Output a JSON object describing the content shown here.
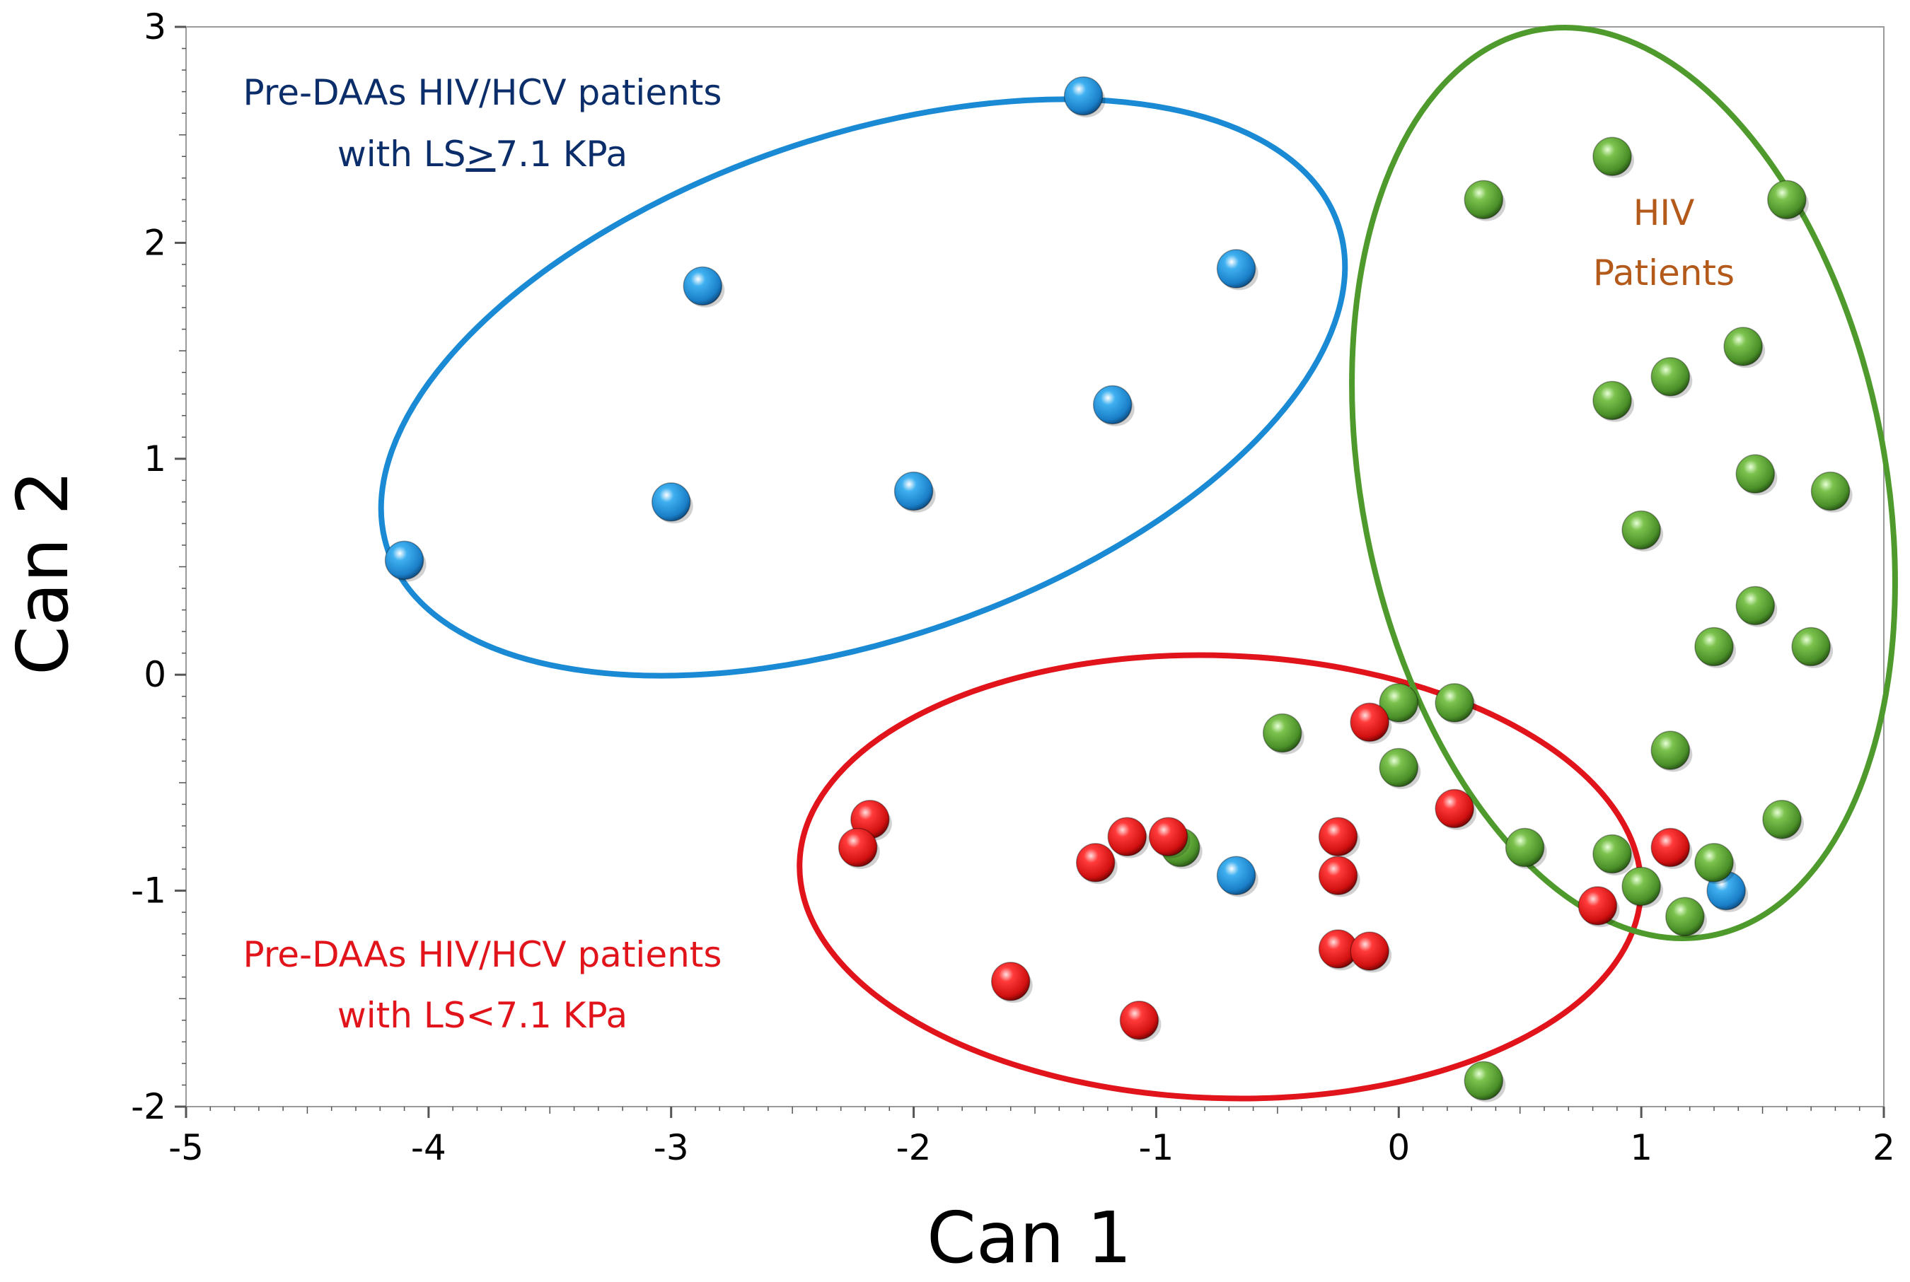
{
  "chart_data": {
    "type": "scatter",
    "title": "",
    "xlabel": "Can 1",
    "ylabel": "Can 2",
    "xlim": [
      -5,
      2
    ],
    "ylim": [
      -2,
      3
    ],
    "xticks": [
      -5,
      -4,
      -3,
      -2,
      -1,
      0,
      1,
      2
    ],
    "yticks": [
      -2,
      -1,
      0,
      1,
      2,
      3
    ],
    "grid": false,
    "colors": {
      "blue": "#1a8ad4",
      "red": "#e0141a",
      "green": "#4f9a2c",
      "blue_text": "#0b2e6b",
      "red_text": "#e0141a",
      "orange_text": "#b35a1a"
    },
    "series": [
      {
        "name": "Pre-DAAs HIV/HCV patients with LS≥7.1 KPa",
        "color": "#1a8ad4",
        "points": [
          {
            "x": -4.1,
            "y": 0.53
          },
          {
            "x": -3.0,
            "y": 0.8
          },
          {
            "x": -2.87,
            "y": 1.8
          },
          {
            "x": -2.0,
            "y": 0.85
          },
          {
            "x": -1.3,
            "y": 2.68
          },
          {
            "x": -1.18,
            "y": 1.25
          },
          {
            "x": -0.67,
            "y": 1.88
          },
          {
            "x": -0.67,
            "y": -0.93
          },
          {
            "x": 1.35,
            "y": -1.0
          }
        ]
      },
      {
        "name": "HIV Patients",
        "color": "#4f9a2c",
        "points": [
          {
            "x": 0.35,
            "y": 2.2
          },
          {
            "x": 0.88,
            "y": 2.4
          },
          {
            "x": 1.6,
            "y": 2.2
          },
          {
            "x": 1.42,
            "y": 1.52
          },
          {
            "x": 1.12,
            "y": 1.38
          },
          {
            "x": 0.88,
            "y": 1.27
          },
          {
            "x": 1.47,
            "y": 0.93
          },
          {
            "x": 1.78,
            "y": 0.85
          },
          {
            "x": 1.0,
            "y": 0.67
          },
          {
            "x": 1.47,
            "y": 0.32
          },
          {
            "x": 1.3,
            "y": 0.13
          },
          {
            "x": 1.7,
            "y": 0.13
          },
          {
            "x": 0.0,
            "y": -0.13
          },
          {
            "x": 0.23,
            "y": -0.13
          },
          {
            "x": -0.48,
            "y": -0.27
          },
          {
            "x": 1.12,
            "y": -0.35
          },
          {
            "x": 0.0,
            "y": -0.43
          },
          {
            "x": 1.58,
            "y": -0.67
          },
          {
            "x": 0.52,
            "y": -0.8
          },
          {
            "x": 0.88,
            "y": -0.83
          },
          {
            "x": 1.3,
            "y": -0.87
          },
          {
            "x": -0.9,
            "y": -0.8
          },
          {
            "x": 1.0,
            "y": -0.98
          },
          {
            "x": 1.18,
            "y": -1.12
          },
          {
            "x": 0.35,
            "y": -1.88
          }
        ]
      },
      {
        "name": "Pre-DAAs HIV/HCV patients with LS<7.1 KPa",
        "color": "#e0141a",
        "points": [
          {
            "x": -0.12,
            "y": -0.22
          },
          {
            "x": 0.23,
            "y": -0.62
          },
          {
            "x": -2.18,
            "y": -0.67
          },
          {
            "x": -2.23,
            "y": -0.8
          },
          {
            "x": -1.12,
            "y": -0.75
          },
          {
            "x": -0.95,
            "y": -0.75
          },
          {
            "x": -1.25,
            "y": -0.87
          },
          {
            "x": -0.25,
            "y": -0.75
          },
          {
            "x": -0.25,
            "y": -0.93
          },
          {
            "x": 1.12,
            "y": -0.8
          },
          {
            "x": 0.82,
            "y": -1.07
          },
          {
            "x": -0.25,
            "y": -1.27
          },
          {
            "x": -0.12,
            "y": -1.28
          },
          {
            "x": -1.6,
            "y": -1.42
          },
          {
            "x": -1.07,
            "y": -1.6
          }
        ]
      }
    ],
    "annotations": {
      "blue_line1": "Pre-DAAs HIV/HCV patients",
      "blue_line2_prefix": "with LS",
      "blue_line2_symbol": ">",
      "blue_line2_suffix": "7.1 KPa",
      "red_line1": "Pre-DAAs HIV/HCV patients",
      "red_line2": "with LS<7.1 KPa",
      "green_line1": "HIV",
      "green_line2": "Patients"
    }
  }
}
